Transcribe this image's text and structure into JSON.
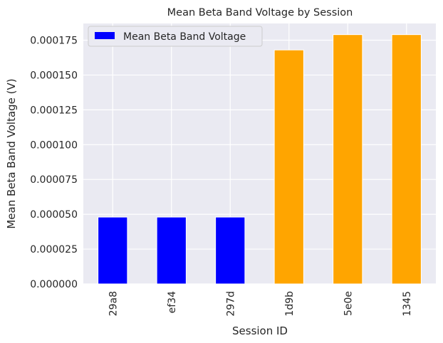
{
  "chart_data": {
    "type": "bar",
    "title": "Mean Beta Band Voltage by Session",
    "xlabel": "Session ID",
    "ylabel": "Mean Beta Band Voltage (V)",
    "categories": [
      "29a8",
      "ef34",
      "297d",
      "1d9b",
      "5e0e",
      "1345"
    ],
    "series": [
      {
        "name": "Mean Beta Band Voltage",
        "values": [
          4.8e-05,
          4.8e-05,
          4.8e-05,
          0.000168,
          0.000179,
          0.000179
        ],
        "colors": [
          "#0000ff",
          "#0000ff",
          "#0000ff",
          "#ffa500",
          "#ffa500",
          "#ffa500"
        ]
      }
    ],
    "ylim": [
      0,
      0.000187
    ],
    "yticks": [
      "0.000000",
      "0.000025",
      "0.000050",
      "0.000075",
      "0.000100",
      "0.000125",
      "0.000150",
      "0.000175"
    ],
    "ytick_values": [
      0,
      2.5e-05,
      5e-05,
      7.5e-05,
      0.0001,
      0.000125,
      0.00015,
      0.000175
    ],
    "grid": true,
    "legend": {
      "placement": "top-left",
      "entries": [
        "Mean Beta Band Voltage"
      ],
      "swatch_color": "#0000ff"
    },
    "colors": {
      "plot_background": "#eaeaf2",
      "grid": "#ffffff",
      "bar_edge": "#ffffff"
    }
  }
}
